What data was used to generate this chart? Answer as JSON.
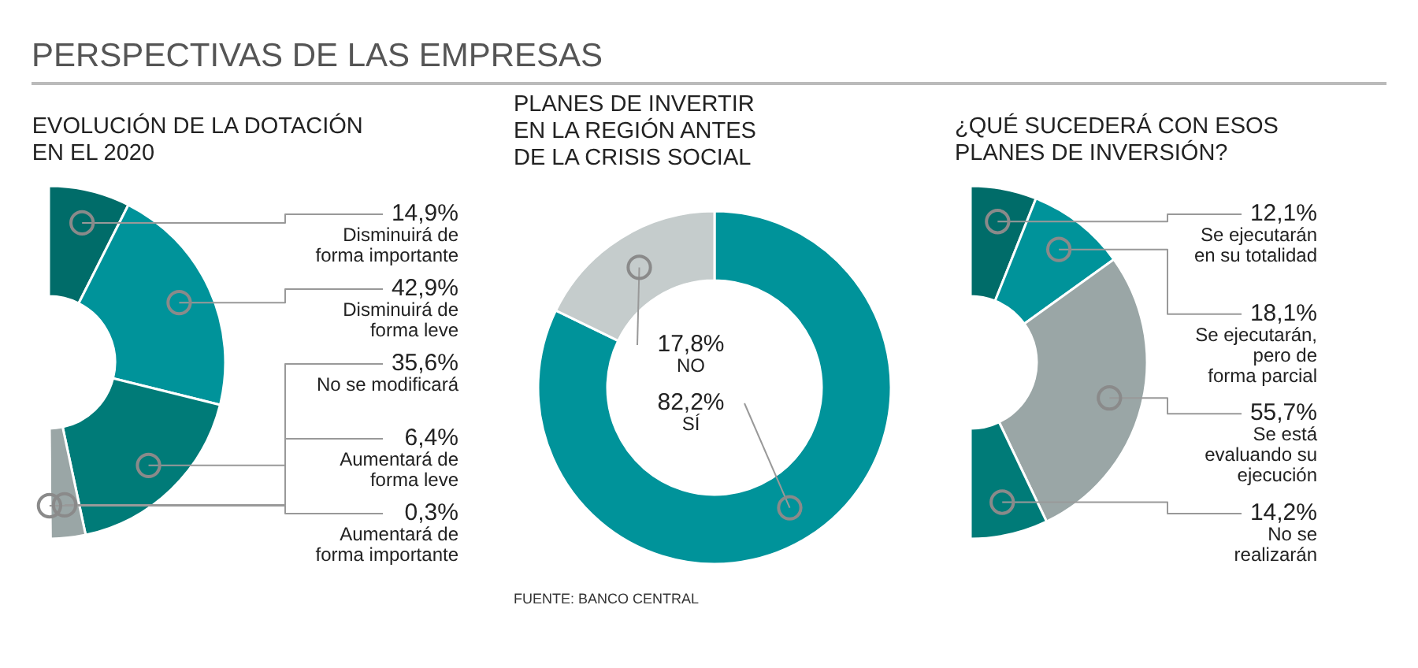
{
  "chart_data": [
    {
      "type": "donut",
      "title": "EVOLUCIÓN DE LA DOTACIÓN\nEN EL 2020",
      "annotations": [
        "PERSPECTIVAS DE LAS EMPRESAS"
      ],
      "categories": [
        "Disminuirá de\nforma importante",
        "Disminuirá de\nforma leve",
        "No se modificará",
        "Aumentará de\nforma leve",
        "Aumentará de\nforma importante"
      ],
      "values": [
        14.9,
        42.9,
        35.6,
        6.4,
        0.3
      ],
      "value_labels": [
        "14,9%",
        "42,9%",
        "35,6%",
        "6,4%",
        "0,3%"
      ],
      "colors": [
        "#006c69",
        "#00939a",
        "#007b78",
        "#9aa6a6",
        "#3a4a4a"
      ],
      "legend": false
    },
    {
      "type": "donut",
      "title": "PLANES DE INVERTIR\nEN LA REGIÓN ANTES\nDE LA CRISIS SOCIAL",
      "annotations": [
        "FUENTE: BANCO CENTRAL"
      ],
      "categories": [
        "SÍ",
        "NO"
      ],
      "values": [
        82.2,
        17.8
      ],
      "value_labels": [
        "82,2%",
        "17,8%"
      ],
      "colors": [
        "#00939a",
        "#c5cccc"
      ],
      "legend": false
    },
    {
      "type": "donut",
      "title": "¿QUÉ SUCEDERÁ CON ESOS\nPLANES DE INVERSIÓN?",
      "categories": [
        "Se ejecutarán\nen su totalidad",
        "Se ejecutarán,\npero de\nforma parcial",
        "Se está\nevaluando su\nejecución",
        "No se\nrealizarán"
      ],
      "values": [
        12.1,
        18.1,
        55.7,
        14.2
      ],
      "value_labels": [
        "12,1%",
        "18,1%",
        "55,7%",
        "14,2%"
      ],
      "colors": [
        "#006c69",
        "#00939a",
        "#9aa6a6",
        "#007b78"
      ],
      "legend": false
    }
  ]
}
